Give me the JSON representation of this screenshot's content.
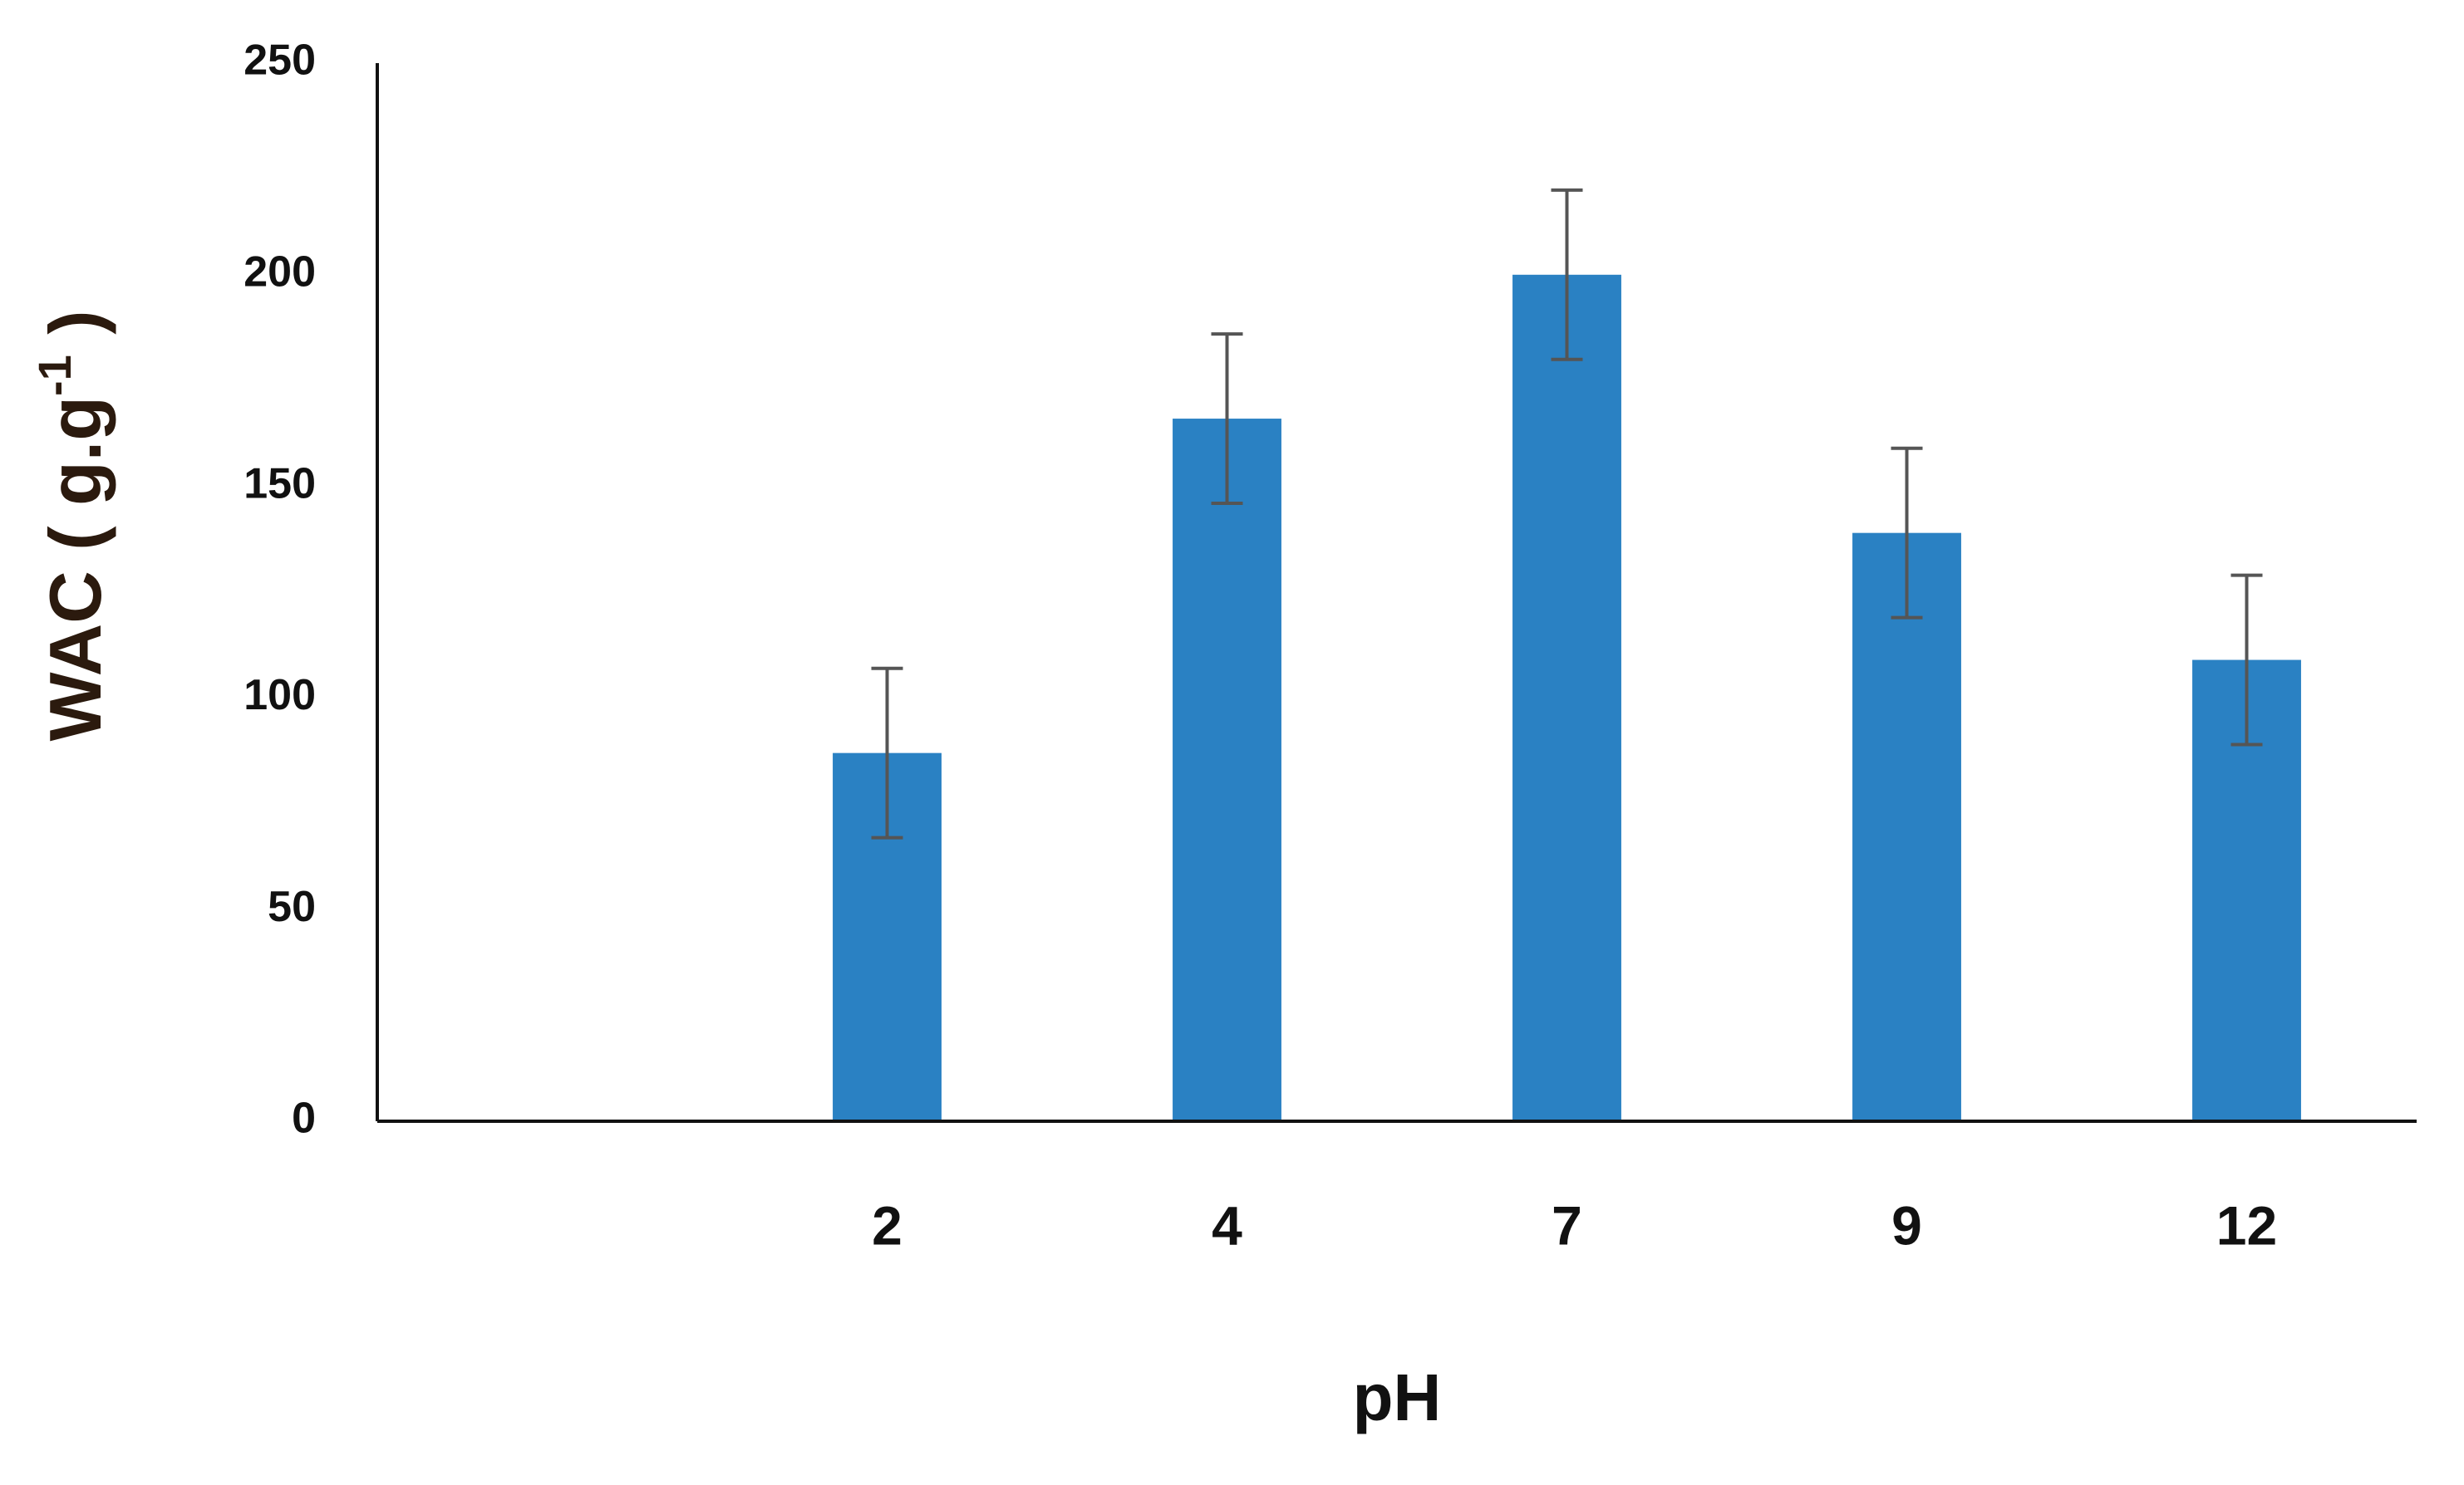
{
  "chart_data": {
    "type": "bar",
    "x_label": "pH",
    "y_label": {
      "text": "WAC ( g.g",
      "sup": "-1",
      "end": " )"
    },
    "categories": [
      null,
      "2",
      "4",
      "7",
      "9",
      "12"
    ],
    "values": [
      null,
      87,
      166,
      200,
      139,
      109
    ],
    "errors": [
      null,
      20,
      20,
      20,
      20,
      20
    ],
    "color": "#2a81c3",
    "error_color": "#555555",
    "ylim": [
      0,
      250
    ],
    "yticks": [
      0,
      50,
      100,
      150,
      200,
      250
    ],
    "grid": false
  }
}
